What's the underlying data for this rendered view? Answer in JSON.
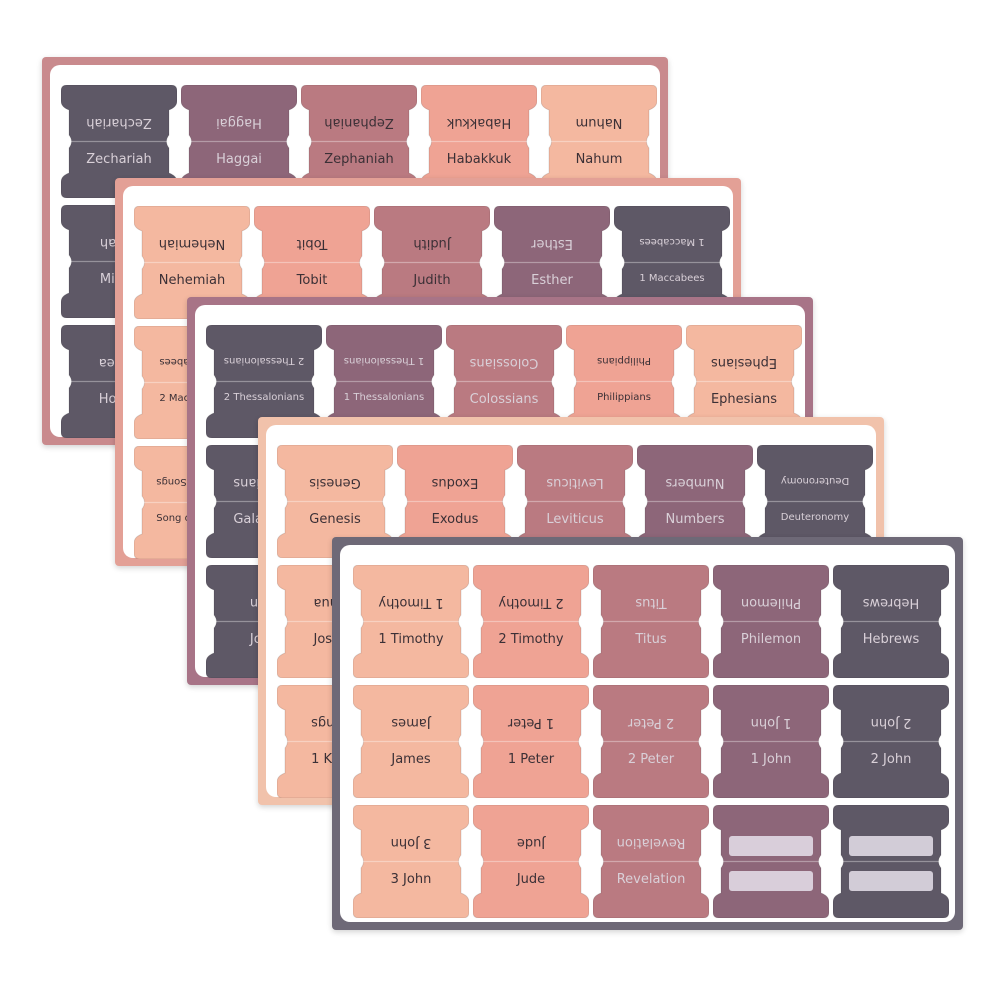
{
  "colors": {
    "dark": "#5e5866",
    "mauve": "#8d6679",
    "rose": "#ba7a81",
    "salmon": "#efa394",
    "peach": "#f4b8a0",
    "text_dark": "#3b3036",
    "text_light": "#d9d0d8"
  },
  "sheets": [
    {
      "border": "#c98a8d",
      "rows": [
        [
          {
            "label": "Zechariah",
            "color": "dark"
          },
          {
            "label": "Haggai",
            "color": "mauve"
          },
          {
            "label": "Zephaniah",
            "color": "rose"
          },
          {
            "label": "Habakkuk",
            "color": "salmon"
          },
          {
            "label": "Nahum",
            "color": "peach"
          }
        ],
        [
          {
            "label": "Micah",
            "color": "dark"
          }
        ],
        [
          {
            "label": "Hosea",
            "color": "dark"
          }
        ]
      ]
    },
    {
      "border": "#e3a096",
      "rows": [
        [
          {
            "label": "Nehemiah",
            "color": "peach"
          },
          {
            "label": "Tobit",
            "color": "salmon"
          },
          {
            "label": "Judith",
            "color": "rose"
          },
          {
            "label": "Esther",
            "color": "mauve"
          },
          {
            "label": "1 Maccabees",
            "color": "dark"
          }
        ],
        [
          {
            "label": "2 Maccabees",
            "color": "peach"
          }
        ],
        [
          {
            "label": "Song of Songs",
            "color": "peach"
          }
        ]
      ]
    },
    {
      "border": "#a87487",
      "rows": [
        [
          {
            "label": "2 Thessalonians",
            "color": "dark"
          },
          {
            "label": "1 Thessalonians",
            "color": "mauve"
          },
          {
            "label": "Colossians",
            "color": "rose"
          },
          {
            "label": "Philippians",
            "color": "salmon"
          },
          {
            "label": "Ephesians",
            "color": "peach"
          }
        ],
        [
          {
            "label": "Galatians",
            "color": "dark"
          }
        ],
        [
          {
            "label": "John",
            "color": "dark"
          }
        ]
      ]
    },
    {
      "border": "#f1c2ab",
      "rows": [
        [
          {
            "label": "Genesis",
            "color": "peach"
          },
          {
            "label": "Exodus",
            "color": "salmon"
          },
          {
            "label": "Leviticus",
            "color": "rose"
          },
          {
            "label": "Numbers",
            "color": "mauve"
          },
          {
            "label": "Deuteronomy",
            "color": "dark"
          }
        ],
        [
          {
            "label": "Joshua",
            "color": "peach"
          }
        ],
        [
          {
            "label": "1 Kings",
            "color": "peach"
          }
        ]
      ]
    },
    {
      "border": "#6e6977",
      "rows": [
        [
          {
            "label": "1 Timothy",
            "color": "peach"
          },
          {
            "label": "2 Timothy",
            "color": "salmon"
          },
          {
            "label": "Titus",
            "color": "rose"
          },
          {
            "label": "Philemon",
            "color": "mauve"
          },
          {
            "label": "Hebrews",
            "color": "dark"
          }
        ],
        [
          {
            "label": "James",
            "color": "peach"
          },
          {
            "label": "1 Peter",
            "color": "salmon"
          },
          {
            "label": "2 Peter",
            "color": "rose"
          },
          {
            "label": "1 John",
            "color": "mauve"
          },
          {
            "label": "2 John",
            "color": "dark"
          }
        ],
        [
          {
            "label": "3 John",
            "color": "peach"
          },
          {
            "label": "Jude",
            "color": "salmon"
          },
          {
            "label": "Revelation",
            "color": "rose"
          },
          {
            "label": "",
            "color": "mauve",
            "blank": true
          },
          {
            "label": "",
            "color": "dark",
            "blank": true
          }
        ]
      ]
    }
  ]
}
